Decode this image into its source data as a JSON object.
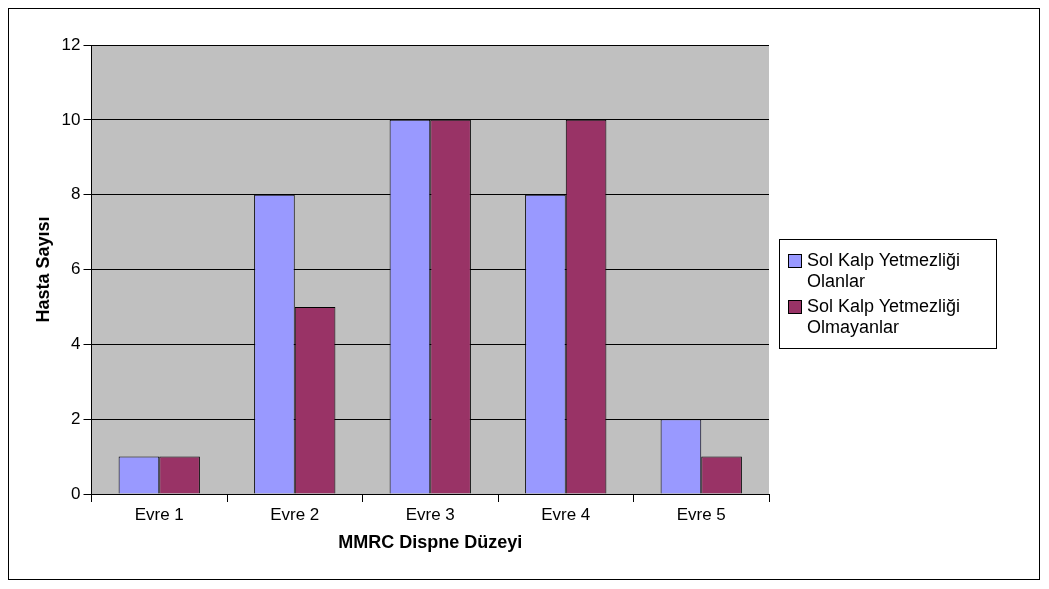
{
  "chart_data": {
    "type": "bar",
    "xlabel": "MMRC Dispne Düzeyi",
    "ylabel": "Hasta Sayısı",
    "categories": [
      "Evre 1",
      "Evre 2",
      "Evre 3",
      "Evre 4",
      "Evre 5"
    ],
    "series": [
      {
        "name": "Sol Kalp Yetmezliği Olanlar",
        "color": "#9999ff",
        "values": [
          1,
          8,
          10,
          8,
          2
        ]
      },
      {
        "name": "Sol Kalp Yetmezliği Olmayanlar",
        "color": "#993366",
        "values": [
          1,
          5,
          10,
          10,
          1
        ]
      }
    ],
    "ylim": [
      0,
      12
    ],
    "yticks": [
      0,
      2,
      4,
      6,
      8,
      10,
      12
    ],
    "grid": "y",
    "legend": "right"
  }
}
